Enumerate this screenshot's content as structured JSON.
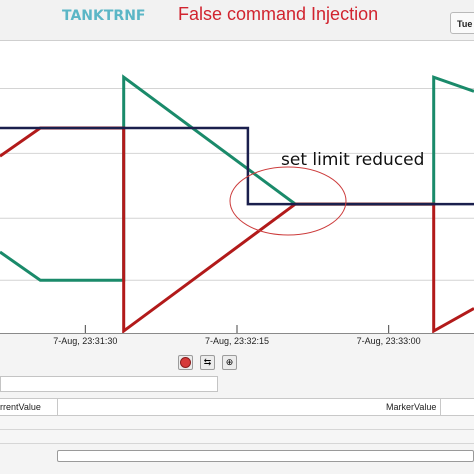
{
  "app_title": "TANKTRNF",
  "caption": "False command Injection",
  "top_button_label": "Tue",
  "annotation": "set limit reduced",
  "colors": {
    "teal": "#1a8a6a",
    "red": "#b21a1a",
    "navy": "#1a1f4d",
    "annotation_ellipse": "#cc3b3b",
    "caption": "#d1242f",
    "app_title": "#5bb6c6"
  },
  "toolbar": {
    "icons": [
      "stop-icon",
      "swap-icon",
      "marker-icon"
    ]
  },
  "grid": {
    "columns": [
      "rrentValue",
      "MarkerValue"
    ]
  },
  "chart_data": {
    "type": "line",
    "title": "",
    "xlabel": "",
    "ylabel": "",
    "x_ticks": [
      "7-Aug, 23:31:30",
      "7-Aug, 23:32:15",
      "7-Aug, 23:33:00"
    ],
    "xlim": [
      0,
      1
    ],
    "ylim": [
      0,
      1
    ],
    "grid": true,
    "series": [
      {
        "color": "#1a8a6a",
        "x": [
          0.0,
          0.085,
          0.261,
          0.261,
          0.623,
          0.915,
          0.915,
          1.0
        ],
        "y": [
          0.28,
          0.18,
          0.18,
          0.9,
          0.45,
          0.45,
          0.9,
          0.85
        ]
      },
      {
        "color": "#b21a1a",
        "x": [
          0.0,
          0.085,
          0.261,
          0.261,
          0.623,
          0.915,
          0.915,
          1.0
        ],
        "y": [
          0.62,
          0.72,
          0.72,
          0.0,
          0.45,
          0.45,
          0.0,
          0.08
        ]
      },
      {
        "color": "#1a1f4d",
        "x": [
          0.0,
          0.523,
          0.523,
          1.0
        ],
        "y": [
          0.72,
          0.72,
          0.45,
          0.45
        ]
      }
    ]
  }
}
